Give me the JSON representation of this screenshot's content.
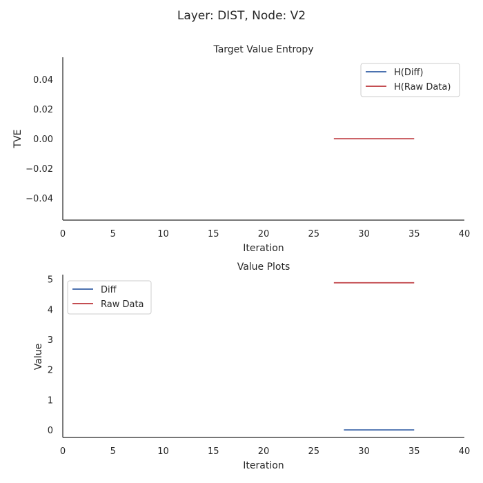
{
  "suptitle": "Layer: DIST, Node: V2",
  "colors": {
    "diff": "#4c72b0",
    "raw": "#c44e52"
  },
  "chart_data": [
    {
      "type": "line",
      "title": "Target Value Entropy",
      "xlabel": "Iteration",
      "ylabel": "TVE",
      "xlim": [
        0,
        40
      ],
      "ylim": [
        -0.055,
        0.055
      ],
      "xticks": [
        "0",
        "5",
        "10",
        "15",
        "20",
        "25",
        "30",
        "35",
        "40"
      ],
      "yticks": [
        "0.04",
        "0.02",
        "0.00",
        "−0.02",
        "−0.04"
      ],
      "legend": "top-right",
      "grid": false,
      "series": [
        {
          "name": "H(Diff)",
          "color": "#4c72b0",
          "x": [],
          "y": []
        },
        {
          "name": "H(Raw Data)",
          "color": "#c44e52",
          "x": [
            27,
            35
          ],
          "y": [
            0.0,
            0.0
          ]
        }
      ]
    },
    {
      "type": "line",
      "title": "Value Plots",
      "xlabel": "Iteration",
      "ylabel": "Value",
      "xlim": [
        0,
        40
      ],
      "ylim": [
        -0.25,
        5.15
      ],
      "xticks": [
        "0",
        "5",
        "10",
        "15",
        "20",
        "25",
        "30",
        "35",
        "40"
      ],
      "yticks": [
        "5",
        "4",
        "3",
        "2",
        "1",
        "0"
      ],
      "legend": "top-left",
      "grid": false,
      "series": [
        {
          "name": "Diff",
          "color": "#4c72b0",
          "x": [
            28,
            35
          ],
          "y": [
            0.0,
            0.0
          ]
        },
        {
          "name": "Raw Data",
          "color": "#c44e52",
          "x": [
            27,
            35
          ],
          "y": [
            4.88,
            4.88
          ]
        }
      ]
    }
  ]
}
